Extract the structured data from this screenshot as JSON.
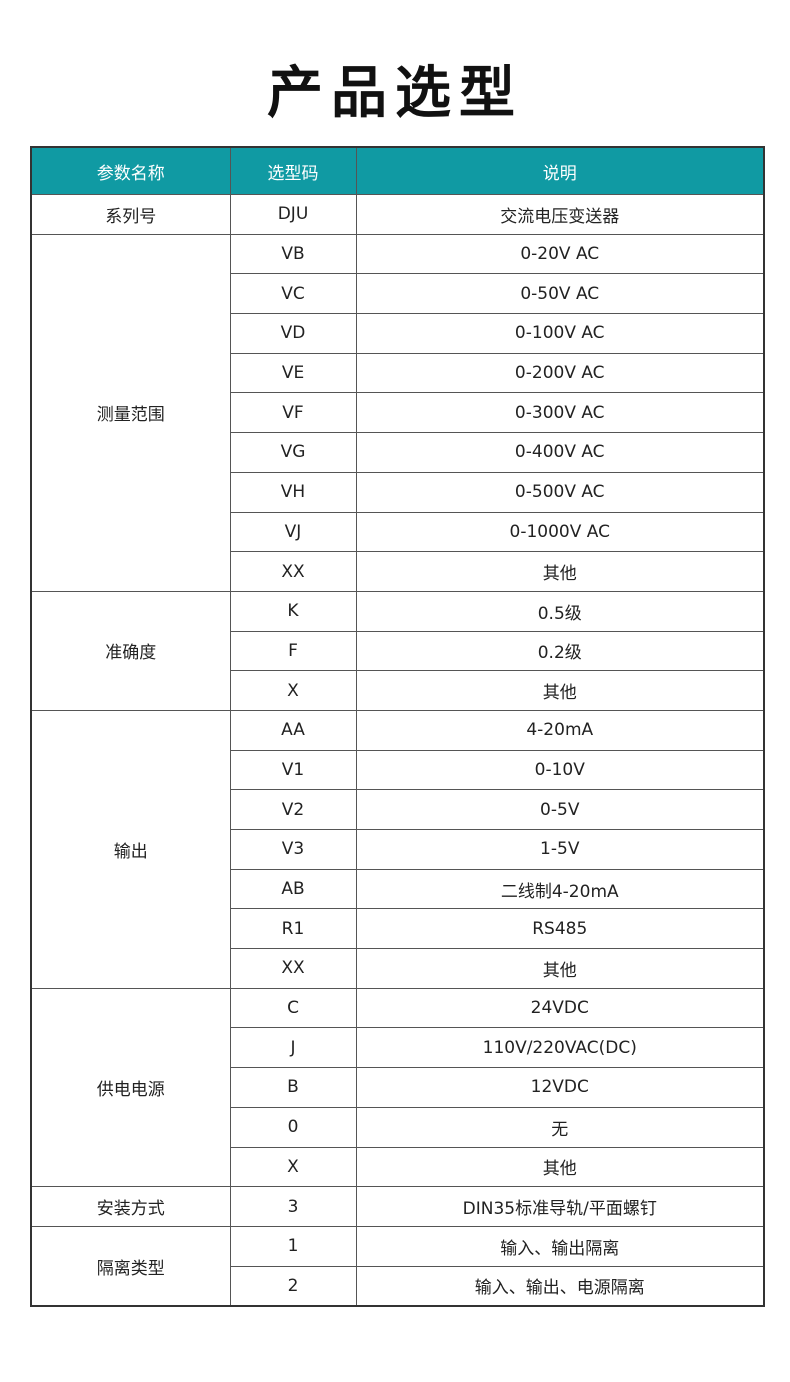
{
  "title": "产品选型",
  "header_color": "#109aa3",
  "columns": [
    "参数名称",
    "选型码",
    "说明"
  ],
  "groups": [
    {
      "name": "系列号",
      "rows": [
        [
          "DJU",
          "交流电压变送器"
        ]
      ]
    },
    {
      "name": "测量范围",
      "rows": [
        [
          "VB",
          "0-20V AC"
        ],
        [
          "VC",
          "0-50V AC"
        ],
        [
          "VD",
          "0-100V AC"
        ],
        [
          "VE",
          "0-200V AC"
        ],
        [
          "VF",
          "0-300V AC"
        ],
        [
          "VG",
          "0-400V AC"
        ],
        [
          "VH",
          "0-500V AC"
        ],
        [
          "VJ",
          "0-1000V AC"
        ],
        [
          "XX",
          "其他"
        ]
      ]
    },
    {
      "name": "准确度",
      "rows": [
        [
          "K",
          "0.5级"
        ],
        [
          "F",
          "0.2级"
        ],
        [
          "X",
          "其他"
        ]
      ]
    },
    {
      "name": "输出",
      "rows": [
        [
          "AA",
          "4-20mA"
        ],
        [
          "V1",
          "0-10V"
        ],
        [
          "V2",
          "0-5V"
        ],
        [
          "V3",
          "1-5V"
        ],
        [
          "AB",
          "二线制4-20mA"
        ],
        [
          "R1",
          "RS485"
        ],
        [
          "XX",
          "其他"
        ]
      ]
    },
    {
      "name": "供电电源",
      "rows": [
        [
          "C",
          "24VDC"
        ],
        [
          "J",
          "110V/220VAC(DC)"
        ],
        [
          "B",
          "12VDC"
        ],
        [
          "0",
          "无"
        ],
        [
          "X",
          "其他"
        ]
      ]
    },
    {
      "name": "安装方式",
      "rows": [
        [
          "3",
          "DIN35标准导轨/平面螺钉"
        ]
      ]
    },
    {
      "name": "隔离类型",
      "rows": [
        [
          "1",
          "输入、输出隔离"
        ],
        [
          "2",
          "输入、输出、电源隔离"
        ]
      ]
    }
  ]
}
